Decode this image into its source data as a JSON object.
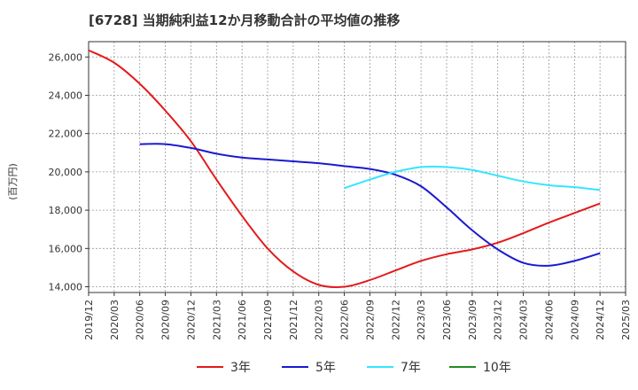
{
  "chart_data": {
    "type": "line",
    "title": "[6728]  当期純利益12か月移動合計の平均値の推移",
    "ylabel": "(百万円)",
    "xlabel": "",
    "ylim": [
      13700,
      26800
    ],
    "y_ticks": [
      14000,
      16000,
      18000,
      20000,
      22000,
      24000,
      26000
    ],
    "y_tick_labels": [
      "14,000",
      "16,000",
      "18,000",
      "20,000",
      "22,000",
      "24,000",
      "26,000"
    ],
    "x_ticks": [
      "2019/12",
      "2020/03",
      "2020/06",
      "2020/09",
      "2020/12",
      "2021/03",
      "2021/06",
      "2021/09",
      "2021/12",
      "2022/03",
      "2022/06",
      "2022/09",
      "2022/12",
      "2023/03",
      "2023/06",
      "2023/09",
      "2023/12",
      "2024/03",
      "2024/06",
      "2024/09",
      "2024/12",
      "2025/03"
    ],
    "grid": true,
    "legend_position": "bottom",
    "series": [
      {
        "name": "3年",
        "color": "#e31a1c",
        "x": [
          "2019/12",
          "2020/03",
          "2020/06",
          "2020/09",
          "2020/12",
          "2021/03",
          "2021/06",
          "2021/09",
          "2021/12",
          "2022/03",
          "2022/06",
          "2022/09",
          "2022/12",
          "2023/03",
          "2023/06",
          "2023/09",
          "2023/12",
          "2024/03",
          "2024/06",
          "2024/09",
          "2024/12"
        ],
        "values": [
          26350,
          25700,
          24600,
          23200,
          21600,
          19600,
          17700,
          16000,
          14800,
          14100,
          14000,
          14350,
          14850,
          15350,
          15700,
          15950,
          16300,
          16800,
          17350,
          17850,
          18350
        ]
      },
      {
        "name": "5年",
        "color": "#1a1ad0",
        "x": [
          "2020/06",
          "2020/09",
          "2020/12",
          "2021/03",
          "2021/06",
          "2021/09",
          "2021/12",
          "2022/03",
          "2022/06",
          "2022/09",
          "2022/12",
          "2023/03",
          "2023/06",
          "2023/09",
          "2023/12",
          "2024/03",
          "2024/06",
          "2024/09",
          "2024/12"
        ],
        "values": [
          21450,
          21450,
          21250,
          20950,
          20750,
          20650,
          20550,
          20450,
          20300,
          20150,
          19850,
          19250,
          18150,
          16950,
          15950,
          15250,
          15100,
          15350,
          15750
        ]
      },
      {
        "name": "7年",
        "color": "#33e6ff",
        "x": [
          "2022/06",
          "2022/09",
          "2022/12",
          "2023/03",
          "2023/06",
          "2023/09",
          "2023/12",
          "2024/03",
          "2024/06",
          "2024/09",
          "2024/12"
        ],
        "values": [
          19150,
          19600,
          20000,
          20250,
          20250,
          20100,
          19800,
          19500,
          19300,
          19200,
          19050
        ]
      },
      {
        "name": "10年",
        "color": "#228b22",
        "x": [],
        "values": []
      }
    ]
  }
}
